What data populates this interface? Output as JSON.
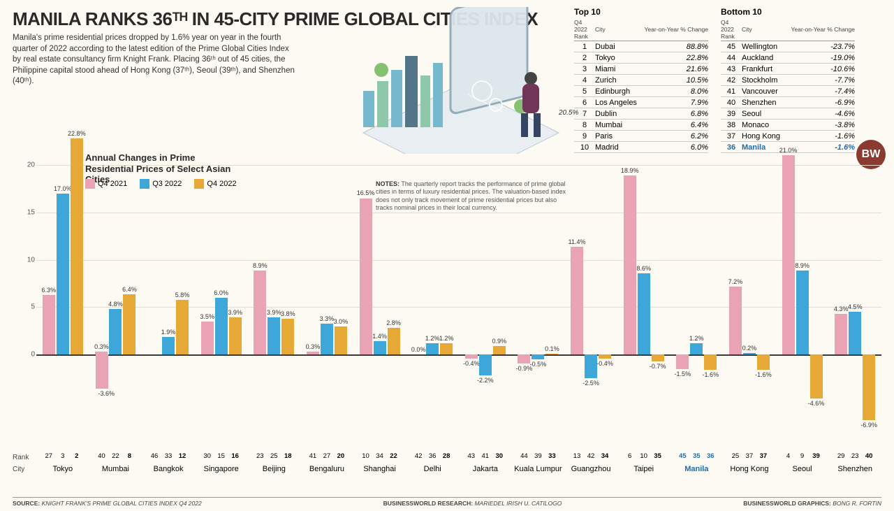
{
  "headline": "MANILA RANKS 36ᵀᴴ IN 45-CITY PRIME GLOBAL CITIES INDEX",
  "subhead": "Manila's prime residential prices dropped by 1.6% year on year in the fourth quarter of 2022 according to the latest edition of the Prime Global Cities Index by real estate consultancy firm Knight Frank. Placing 36ᵗʰ out of 45 cities, the Philippine capital stood ahead of Hong Kong (37ᵗʰ), Seoul (39ᵗʰ), and Shenzhen (40ᵗʰ).",
  "chart_title": "Annual Changes in Prime Residential Prices of Select Asian Cities",
  "notes": "The quarterly report tracks the performance of prime global cities in terms of luxury residential prices. The valuation-based index does not only track movement of prime residential prices but also tracks nominal prices in their local currency.",
  "notes_label": "NOTES:",
  "legend": [
    {
      "label": "Q4 2021",
      "color": "#e9a3b4"
    },
    {
      "label": "Q3 2022",
      "color": "#3da7d9"
    },
    {
      "label": "Q4 2022",
      "color": "#e6a935"
    }
  ],
  "y_axis": {
    "min": -10,
    "max": 22.8,
    "ticks": [
      0,
      5,
      10,
      15,
      20
    ]
  },
  "bg_color": "#fdfaf3",
  "grid_color": "#e3ddd0",
  "zero_color": "#3a3a3a",
  "top10": {
    "title": "Top 10",
    "sub_rank": "Q4 2022 Rank",
    "col_city": "City",
    "col_pct": "Year-on-Year % Change",
    "rows": [
      {
        "rank": 1,
        "city": "Dubai",
        "pct": "88.8%"
      },
      {
        "rank": 2,
        "city": "Tokyo",
        "pct": "22.8%"
      },
      {
        "rank": 3,
        "city": "Miami",
        "pct": "21.6%"
      },
      {
        "rank": 4,
        "city": "Zurich",
        "pct": "10.5%"
      },
      {
        "rank": 5,
        "city": "Edinburgh",
        "pct": "8.0%"
      },
      {
        "rank": 6,
        "city": "Los Angeles",
        "pct": "7.9%"
      },
      {
        "rank": 7,
        "city": "Dublin",
        "pct": "6.8%"
      },
      {
        "rank": 8,
        "city": "Mumbai",
        "pct": "6.4%"
      },
      {
        "rank": 9,
        "city": "Paris",
        "pct": "6.2%"
      },
      {
        "rank": 10,
        "city": "Madrid",
        "pct": "6.0%"
      }
    ]
  },
  "bottom10": {
    "title": "Bottom 10",
    "sub_rank": "Q4 2022 Rank",
    "col_city": "City",
    "col_pct": "Year-on-Year % Change",
    "rows": [
      {
        "rank": 45,
        "city": "Wellington",
        "pct": "-23.7%"
      },
      {
        "rank": 44,
        "city": "Auckland",
        "pct": "-19.0%"
      },
      {
        "rank": 43,
        "city": "Frankfurt",
        "pct": "-10.6%"
      },
      {
        "rank": 42,
        "city": "Stockholm",
        "pct": "-7.7%"
      },
      {
        "rank": 41,
        "city": "Vancouver",
        "pct": "-7.4%"
      },
      {
        "rank": 40,
        "city": "Shenzhen",
        "pct": "-6.9%"
      },
      {
        "rank": 39,
        "city": "Seoul",
        "pct": "-4.6%"
      },
      {
        "rank": 38,
        "city": "Monaco",
        "pct": "-3.8%"
      },
      {
        "rank": 37,
        "city": "Hong Kong",
        "pct": "-1.6%"
      },
      {
        "rank": 36,
        "city": "Manila",
        "pct": "-1.6%",
        "highlight": true
      }
    ]
  },
  "cities": [
    {
      "name": "Tokyo",
      "ranks": [
        27,
        3,
        2
      ],
      "vals": [
        6.3,
        17.0,
        22.8
      ]
    },
    {
      "name": "Mumbai",
      "ranks": [
        40,
        22,
        8
      ],
      "vals": [
        0.3,
        4.8,
        6.4
      ],
      "neg_extra": {
        "idx": 0,
        "val": -3.6
      }
    },
    {
      "name": "Bangkok",
      "ranks": [
        46,
        33,
        12
      ],
      "vals": [
        null,
        1.9,
        5.8
      ]
    },
    {
      "name": "Singapore",
      "ranks": [
        30,
        15,
        16
      ],
      "vals": [
        3.5,
        6.0,
        3.9
      ]
    },
    {
      "name": "Beijing",
      "ranks": [
        23,
        25,
        18
      ],
      "vals": [
        8.9,
        3.9,
        3.8
      ]
    },
    {
      "name": "Bengaluru",
      "ranks": [
        41,
        27,
        20
      ],
      "vals": [
        0.3,
        3.3,
        3.0
      ]
    },
    {
      "name": "Shanghai",
      "ranks": [
        10,
        34,
        22
      ],
      "vals": [
        16.5,
        1.4,
        2.8
      ]
    },
    {
      "name": "Delhi",
      "ranks": [
        42,
        36,
        28
      ],
      "vals": [
        0.0,
        1.2,
        1.2
      ]
    },
    {
      "name": "Jakarta",
      "ranks": [
        43,
        41,
        30
      ],
      "vals": [
        -0.4,
        -2.2,
        0.9
      ]
    },
    {
      "name": "Kuala Lumpur",
      "ranks": [
        44,
        39,
        33
      ],
      "vals": [
        -0.9,
        -0.5,
        0.1
      ]
    },
    {
      "name": "Guangzhou",
      "ranks": [
        13,
        42,
        34
      ],
      "vals": [
        11.4,
        -2.5,
        -0.4
      ]
    },
    {
      "name": "Taipei",
      "ranks": [
        6,
        10,
        35
      ],
      "vals": [
        18.9,
        8.6,
        -0.7
      ]
    },
    {
      "name": "Manila",
      "ranks": [
        45,
        35,
        36
      ],
      "vals": [
        -1.5,
        1.2,
        -1.6
      ],
      "highlight": true
    },
    {
      "name": "Hong Kong",
      "ranks": [
        25,
        37,
        37
      ],
      "vals": [
        7.2,
        0.2,
        -1.6
      ]
    },
    {
      "name": "Seoul",
      "ranks": [
        4,
        9,
        39
      ],
      "vals": [
        21.0,
        8.9,
        -4.6
      ]
    },
    {
      "name": "Shenzhen",
      "ranks": [
        29,
        23,
        40
      ],
      "vals": [
        4.3,
        4.5,
        -6.9
      ]
    }
  ],
  "rowlabels": {
    "rank": "Rank",
    "city": "City"
  },
  "footer": {
    "source_label": "SOURCE:",
    "source": "KNIGHT FRANK'S PRIME GLOBAL CITIES INDEX Q4 2022",
    "research_label": "BUSINESSWORLD RESEARCH:",
    "research": "MARIEDEL IRISH U. CATILOGO",
    "graphics_label": "BUSINESSWORLD GRAPHICS:",
    "graphics": "BONG R. FORTIN"
  },
  "logo": "BW",
  "callout_205": "20.5%"
}
